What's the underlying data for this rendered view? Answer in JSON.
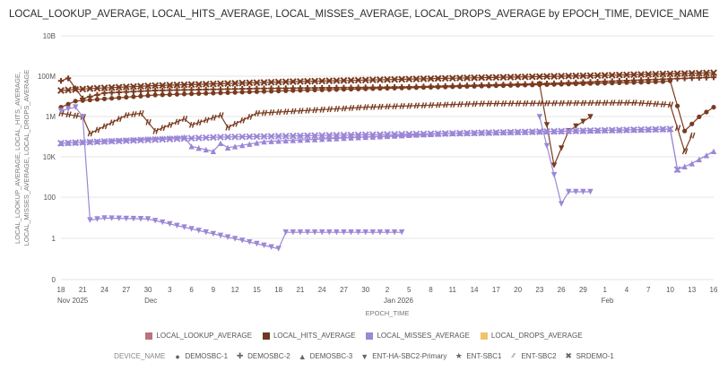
{
  "chart_data": {
    "type": "line",
    "title": "LOCAL_LOOKUP_AVERAGE, LOCAL_HITS_AVERAGE, LOCAL_MISSES_AVERAGE, LOCAL_DROPS_AVERAGE by EPOCH_TIME, DEVICE_NAME",
    "xlabel": "EPOCH_TIME",
    "ylabel_lines": [
      "LOCAL_LOOKUP_AVERAGE, LOCAL_HITS_AVERAGE,",
      "LOCAL_MISSES_AVERAGE, LOCAL_DROPS_AVERAGE"
    ],
    "yscale": "log",
    "y_ticks": [
      "10B",
      "100M",
      "1M",
      "10K",
      "100",
      "1",
      "0"
    ],
    "x_tick_labels": [
      "18",
      "21",
      "24",
      "27",
      "30",
      "3",
      "6",
      "9",
      "12",
      "15",
      "18",
      "21",
      "24",
      "27",
      "30",
      "2",
      "5",
      "8",
      "11",
      "14",
      "17",
      "20",
      "23",
      "26",
      "29",
      "1",
      "4",
      "7",
      "10",
      "13",
      "16"
    ],
    "x_month_labels": [
      {
        "label": "Nov 2025",
        "tick": 0
      },
      {
        "label": "Dec",
        "tick": 4
      },
      {
        "label": "Jan 2026",
        "tick": 15
      },
      {
        "label": "Feb",
        "tick": 25
      }
    ],
    "x_start": "2025-11-18",
    "x_end": "2026-02-16",
    "grid": true,
    "series": [
      {
        "name": "LOCAL_HITS_AVERAGE",
        "device": "ENT-SBC1",
        "color": "#7a3b1f",
        "points": [
          [
            "2025-11-18",
            3000000
          ],
          [
            "2025-11-20",
            6000000
          ],
          [
            "2025-12-01",
            12000000
          ],
          [
            "2025-12-20",
            20000000
          ],
          [
            "2026-01-10",
            30000000
          ],
          [
            "2026-01-25",
            40000000
          ],
          [
            "2026-02-05",
            50000000
          ],
          [
            "2026-02-09",
            55000000
          ],
          [
            "2026-02-10",
            60000000
          ],
          [
            "2026-02-12",
            200000
          ],
          [
            "2026-02-14",
            1000000
          ],
          [
            "2026-02-16",
            3000000
          ]
        ]
      },
      {
        "name": "LOCAL_HITS_AVERAGE",
        "device": "SRDEMO-1",
        "color": "#7a3b1f",
        "points": [
          [
            "2025-11-18",
            20000000
          ],
          [
            "2025-11-22",
            25000000
          ],
          [
            "2025-12-01",
            35000000
          ],
          [
            "2025-12-20",
            55000000
          ],
          [
            "2026-01-10",
            80000000
          ],
          [
            "2026-01-31",
            110000000
          ],
          [
            "2026-02-16",
            150000000
          ]
        ]
      },
      {
        "name": "LOCAL_HITS_AVERAGE",
        "device": "DEMOSBC-2",
        "color": "#7a3b1f",
        "points": [
          [
            "2025-11-18",
            60000000
          ],
          [
            "2025-11-19",
            80000000
          ],
          [
            "2025-11-21",
            8000000
          ],
          [
            "2025-11-24",
            15000000
          ],
          [
            "2025-12-01",
            20000000
          ],
          [
            "2025-12-15",
            25000000
          ],
          [
            "2026-01-05",
            30000000
          ],
          [
            "2026-01-25",
            45000000
          ],
          [
            "2026-02-16",
            90000000
          ]
        ]
      },
      {
        "name": "LOCAL_HITS_AVERAGE",
        "device": "ENT-SBC2",
        "color": "#7a3b1f",
        "points": [
          [
            "2025-11-18",
            1500000
          ],
          [
            "2025-11-21",
            1000000
          ],
          [
            "2025-11-22",
            150000
          ],
          [
            "2025-11-27",
            1200000
          ],
          [
            "2025-11-29",
            1500000
          ],
          [
            "2025-12-01",
            200000
          ],
          [
            "2025-12-05",
            800000
          ],
          [
            "2025-12-06",
            400000
          ],
          [
            "2025-12-10",
            1200000
          ],
          [
            "2025-12-11",
            300000
          ],
          [
            "2025-12-15",
            1500000
          ],
          [
            "2025-12-30",
            3000000
          ],
          [
            "2026-01-15",
            4500000
          ],
          [
            "2026-02-05",
            5000000
          ],
          [
            "2026-02-10",
            4000000
          ],
          [
            "2026-02-12",
            20000
          ],
          [
            "2026-02-13",
            120000
          ]
        ]
      },
      {
        "name": "LOCAL_HITS_AVERAGE",
        "device": "ENT-HA-SBC2-Primary",
        "color": "#7a3b1f",
        "points": [
          [
            "2026-01-23",
            40000000
          ],
          [
            "2026-01-25",
            4000
          ],
          [
            "2026-01-27",
            200000
          ],
          [
            "2026-01-30",
            1000000
          ]
        ]
      },
      {
        "name": "LOCAL_MISSES_AVERAGE",
        "device": "ENT-HA-SBC2-Primary",
        "color": "#9b87d6",
        "points": [
          [
            "2025-11-18",
            2000000
          ],
          [
            "2025-11-20",
            3000000
          ],
          [
            "2025-11-21",
            1000000
          ],
          [
            "2025-11-22",
            8
          ],
          [
            "2025-11-24",
            10
          ],
          [
            "2025-11-30",
            9
          ],
          [
            "2025-12-18",
            0.5
          ],
          [
            "2025-12-19",
            2
          ],
          [
            "2026-01-04",
            2
          ]
        ]
      },
      {
        "name": "LOCAL_MISSES_AVERAGE",
        "device": "ENT-HA-SBC2-Primary (late)",
        "color": "#9b87d6",
        "points": [
          [
            "2026-01-23",
            1000000
          ],
          [
            "2026-01-26",
            50
          ],
          [
            "2026-01-27",
            200
          ],
          [
            "2026-01-30",
            200
          ]
        ]
      },
      {
        "name": "LOCAL_MISSES_AVERAGE",
        "device": "DEMOSBC-3",
        "color": "#9b87d6",
        "points": [
          [
            "2025-11-18",
            50000
          ],
          [
            "2025-12-05",
            100000
          ],
          [
            "2025-12-06",
            35000
          ],
          [
            "2025-12-09",
            20000
          ],
          [
            "2025-12-10",
            50000
          ],
          [
            "2025-12-11",
            30000
          ],
          [
            "2025-12-16",
            60000
          ],
          [
            "2026-01-10",
            150000
          ],
          [
            "2026-02-10",
            250000
          ],
          [
            "2026-02-11",
            2500
          ],
          [
            "2026-02-13",
            5000
          ],
          [
            "2026-02-16",
            20000
          ]
        ]
      },
      {
        "name": "LOCAL_MISSES_AVERAGE",
        "device": "SRDEMO-1",
        "color": "#9b87d6",
        "points": [
          [
            "2025-11-18",
            50000
          ],
          [
            "2025-12-10",
            100000
          ],
          [
            "2026-01-10",
            150000
          ],
          [
            "2026-02-10",
            250000
          ],
          [
            "2026-02-11",
            2500
          ]
        ]
      }
    ]
  },
  "legend": {
    "metrics": [
      {
        "label": "LOCAL_LOOKUP_AVERAGE",
        "color": "#b9737e"
      },
      {
        "label": "LOCAL_HITS_AVERAGE",
        "color": "#6b3a21"
      },
      {
        "label": "LOCAL_MISSES_AVERAGE",
        "color": "#9b87d6"
      },
      {
        "label": "LOCAL_DROPS_AVERAGE",
        "color": "#f2c26b"
      }
    ],
    "device_title": "DEVICE_NAME",
    "devices": [
      {
        "label": "DEMOSBC-1",
        "icon": "circle-icon",
        "glyph": "●"
      },
      {
        "label": "DEMOSBC-2",
        "icon": "plus-icon",
        "glyph": "✚"
      },
      {
        "label": "DEMOSBC-3",
        "icon": "triangle-up-icon",
        "glyph": "▲"
      },
      {
        "label": "ENT-HA-SBC2-Primary",
        "icon": "triangle-down-icon",
        "glyph": "▼"
      },
      {
        "label": "ENT-SBC1",
        "icon": "star-icon",
        "glyph": "★"
      },
      {
        "label": "ENT-SBC2",
        "icon": "hash-icon",
        "glyph": "⁄⁄"
      },
      {
        "label": "SRDEMO-1",
        "icon": "x-icon",
        "glyph": "✖"
      }
    ]
  }
}
